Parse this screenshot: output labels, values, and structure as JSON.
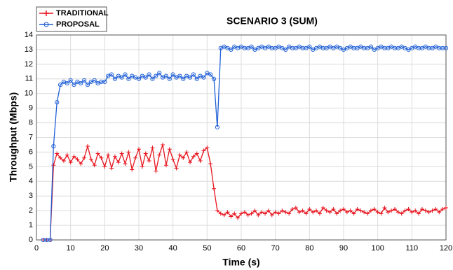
{
  "chart_data": {
    "type": "line",
    "title": "SCENARIO 3 (SUM)",
    "x_label": "Time (s)",
    "y_label": "Throughput (Mbps)",
    "x": [
      2,
      3,
      4,
      5,
      6,
      7,
      8,
      9,
      10,
      11,
      12,
      13,
      14,
      15,
      16,
      17,
      18,
      19,
      20,
      21,
      22,
      23,
      24,
      25,
      26,
      27,
      28,
      29,
      30,
      31,
      32,
      33,
      34,
      35,
      36,
      37,
      38,
      39,
      40,
      41,
      42,
      43,
      44,
      45,
      46,
      47,
      48,
      49,
      50,
      51,
      52,
      53,
      54,
      55,
      56,
      57,
      58,
      59,
      60,
      61,
      62,
      63,
      64,
      65,
      66,
      67,
      68,
      69,
      70,
      71,
      72,
      73,
      74,
      75,
      76,
      77,
      78,
      79,
      80,
      81,
      82,
      83,
      84,
      85,
      86,
      87,
      88,
      89,
      90,
      91,
      92,
      93,
      94,
      95,
      96,
      97,
      98,
      99,
      100,
      101,
      102,
      103,
      104,
      105,
      106,
      107,
      108,
      109,
      110,
      111,
      112,
      113,
      114,
      115,
      116,
      117,
      118,
      119,
      120
    ],
    "series": [
      {
        "name": "TRADITIONAL",
        "color": "#e8141e",
        "marker": "plus",
        "values": [
          0,
          0,
          0,
          5.1,
          5.9,
          5.6,
          5.4,
          5.8,
          5.3,
          5.7,
          5.5,
          5.2,
          5.6,
          6.4,
          5.5,
          5.1,
          5.9,
          5.6,
          5.0,
          5.8,
          4.9,
          5.7,
          5.3,
          5.9,
          5.2,
          6.0,
          4.8,
          5.6,
          6.2,
          5.0,
          5.9,
          5.4,
          6.3,
          4.7,
          5.8,
          6.5,
          5.1,
          6.2,
          5.5,
          4.9,
          5.8,
          5.6,
          6.0,
          5.3,
          5.7,
          5.9,
          5.4,
          6.1,
          6.3,
          5.2,
          3.5,
          2.0,
          1.8,
          1.7,
          1.9,
          1.6,
          1.8,
          1.5,
          1.8,
          1.9,
          1.7,
          1.8,
          2.0,
          1.7,
          1.9,
          1.8,
          2.0,
          1.7,
          1.9,
          1.8,
          2.0,
          1.9,
          1.8,
          2.1,
          2.2,
          1.9,
          2.0,
          1.8,
          2.1,
          1.9,
          2.0,
          1.8,
          2.2,
          2.0,
          1.9,
          2.1,
          1.8,
          2.0,
          2.1,
          1.9,
          2.0,
          1.8,
          2.1,
          2.0,
          1.9,
          1.8,
          2.0,
          2.1,
          1.9,
          1.8,
          2.2,
          1.9,
          2.0,
          2.1,
          1.9,
          1.8,
          2.0,
          2.1,
          1.9,
          2.0,
          1.8,
          2.1,
          2.0,
          1.9,
          2.0,
          2.1,
          1.9,
          2.1,
          2.2
        ]
      },
      {
        "name": "PROPOSAL",
        "color": "#1f5fd6",
        "marker": "circle",
        "values": [
          0,
          0,
          0,
          6.4,
          9.4,
          10.6,
          10.8,
          10.7,
          10.9,
          10.6,
          10.8,
          10.7,
          10.9,
          10.6,
          10.8,
          10.9,
          10.7,
          10.8,
          10.8,
          11.2,
          11.3,
          11.0,
          11.2,
          11.1,
          11.3,
          11.0,
          11.2,
          11.1,
          11.0,
          11.2,
          11.1,
          11.3,
          11.0,
          11.2,
          11.4,
          11.1,
          11.2,
          11.0,
          11.3,
          11.1,
          11.2,
          11.0,
          11.2,
          11.1,
          11.3,
          11.0,
          11.2,
          11.1,
          11.4,
          11.3,
          11.0,
          7.7,
          13.1,
          13.2,
          13.1,
          13.0,
          13.2,
          13.1,
          13.2,
          13.1,
          13.1,
          13.2,
          13.0,
          13.1,
          13.2,
          13.1,
          13.2,
          13.1,
          13.1,
          13.2,
          13.1,
          13.0,
          13.2,
          13.1,
          13.1,
          13.2,
          13.1,
          13.1,
          13.2,
          13.0,
          13.1,
          13.2,
          13.1,
          13.1,
          13.2,
          13.1,
          13.2,
          13.1,
          13.0,
          13.1,
          13.2,
          13.1,
          13.1,
          13.2,
          13.1,
          13.1,
          13.2,
          13.0,
          13.1,
          13.2,
          13.1,
          13.1,
          13.2,
          13.1,
          13.1,
          13.2,
          13.1,
          13.0,
          13.1,
          13.2,
          13.1,
          13.1,
          13.2,
          13.1,
          13.1,
          13.2,
          13.1,
          13.1,
          13.1
        ]
      }
    ],
    "xlim": [
      0,
      120
    ],
    "xticks": [
      0,
      10,
      20,
      30,
      40,
      50,
      60,
      70,
      80,
      90,
      100,
      110,
      120
    ],
    "ylim": [
      0,
      14
    ],
    "yticks": [
      0,
      1,
      2,
      3,
      4,
      5,
      6,
      7,
      8,
      9,
      10,
      11,
      12,
      13,
      14
    ],
    "grid": true,
    "legend": "upper left"
  }
}
